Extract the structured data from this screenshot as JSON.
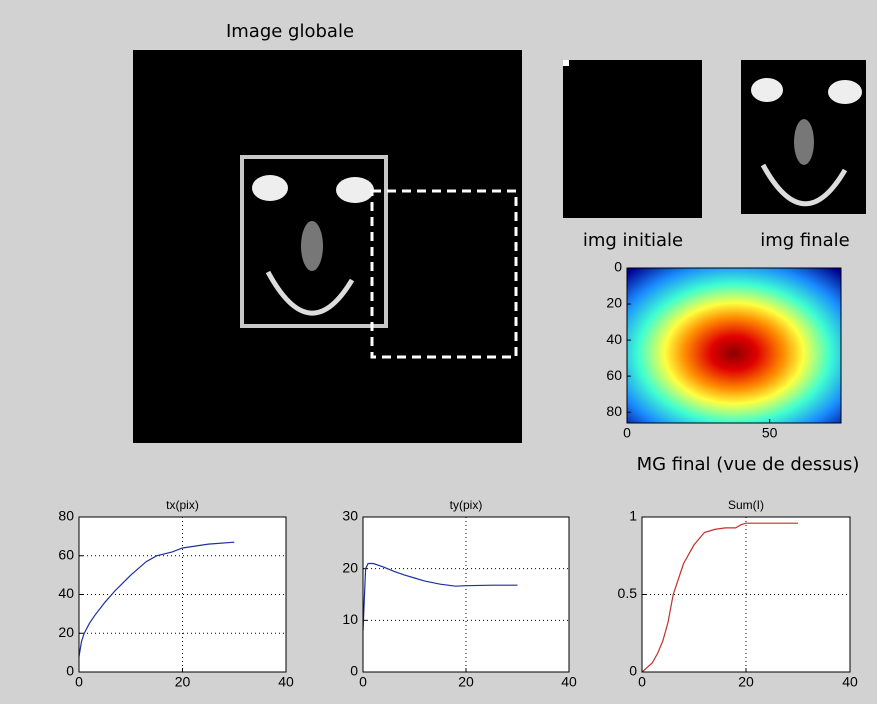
{
  "panels": {
    "global": {
      "title": "Image globale"
    },
    "initial": {
      "label": "img initiale"
    },
    "final": {
      "label": "img finale"
    }
  },
  "chart_data": [
    {
      "type": "heatmap",
      "xlabel": "MG final (vue de dessus)",
      "xlim": [
        0,
        75
      ],
      "ylim": [
        0,
        86
      ],
      "yreverse": true,
      "xticks": [
        0,
        50
      ],
      "yticks": [
        0,
        20,
        40,
        60,
        80
      ]
    },
    {
      "type": "line",
      "title": "tx(pix)",
      "color": "#1f2f9f",
      "grid": true,
      "xlim": [
        0,
        40
      ],
      "ylim": [
        0,
        80
      ],
      "xticks": [
        0,
        20,
        40
      ],
      "yticks": [
        0,
        20,
        40,
        60,
        80
      ],
      "x": [
        0,
        0.5,
        1,
        2,
        3,
        5,
        7,
        10,
        13,
        15,
        18,
        20,
        25,
        30
      ],
      "values": [
        8,
        16,
        20,
        25,
        29,
        36,
        42,
        50,
        57,
        60,
        62,
        64,
        66,
        67
      ]
    },
    {
      "type": "line",
      "title": "ty(pix)",
      "color": "#1f2f9f",
      "grid": true,
      "xlim": [
        0,
        40
      ],
      "ylim": [
        0,
        30
      ],
      "xticks": [
        0,
        20,
        40
      ],
      "yticks": [
        0,
        10,
        20,
        30
      ],
      "x": [
        0,
        0.5,
        1,
        2,
        4,
        6,
        8,
        10,
        12,
        15,
        18,
        20,
        25,
        30
      ],
      "values": [
        8,
        20,
        21,
        21,
        20.3,
        19.5,
        18.8,
        18.2,
        17.6,
        17,
        16.6,
        16.7,
        16.8,
        16.8
      ]
    },
    {
      "type": "line",
      "title": "Sum(I)",
      "color": "#c0312b",
      "grid": true,
      "xlim": [
        0,
        40
      ],
      "ylim": [
        0,
        1
      ],
      "xticks": [
        0,
        20,
        40
      ],
      "yticks": [
        0,
        0.5,
        1
      ],
      "x": [
        0,
        1,
        2,
        3,
        4,
        5,
        6,
        7,
        8,
        10,
        12,
        14,
        16,
        18,
        19,
        20,
        25,
        30
      ],
      "values": [
        0,
        0.03,
        0.06,
        0.12,
        0.2,
        0.32,
        0.5,
        0.6,
        0.7,
        0.82,
        0.9,
        0.92,
        0.93,
        0.93,
        0.95,
        0.96,
        0.96,
        0.96
      ]
    }
  ]
}
